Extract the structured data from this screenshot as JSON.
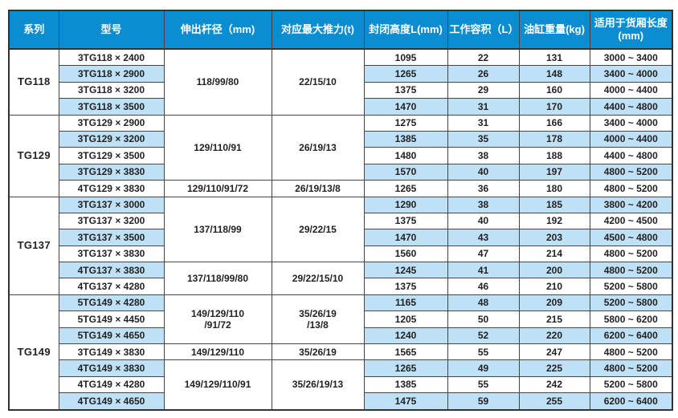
{
  "colors": {
    "header_bg": "#0b8dd2",
    "header_text": "#ffffff",
    "stripe_bg": "#bfe1f5",
    "row_bg": "#ffffff",
    "border": "#454548",
    "text": "#231f20"
  },
  "table": {
    "columns": [
      "系列",
      "型号",
      "伸出杆径（mm)",
      "对应最大推力(t)",
      "封闭高度L(mm)",
      "工作容积（L）",
      "油缸重量(kg)",
      "适用于货厢长度\n(mm)"
    ],
    "groups": [
      {
        "series": "TG118",
        "spans": [
          {
            "rows": 4,
            "rod": "118/99/80",
            "thrust": "22/15/10"
          }
        ],
        "rows": [
          {
            "model": "3TG118 × 2400",
            "closed_height": "1095",
            "volume": "22",
            "weight": "131",
            "box_length": "3000 ~ 3400"
          },
          {
            "model": "3TG118 × 2900",
            "closed_height": "1265",
            "volume": "26",
            "weight": "148",
            "box_length": "3400 ~ 4000"
          },
          {
            "model": "3TG118 × 3200",
            "closed_height": "1375",
            "volume": "29",
            "weight": "160",
            "box_length": "4000 ~ 4400"
          },
          {
            "model": "3TG118 × 3500",
            "closed_height": "1470",
            "volume": "31",
            "weight": "170",
            "box_length": "4400 ~ 4800"
          }
        ]
      },
      {
        "series": "TG129",
        "spans": [
          {
            "rows": 4,
            "rod": "129/110/91",
            "thrust": "26/19/13"
          },
          {
            "rows": 1,
            "rod": "129/110/91/72",
            "thrust": "26/19/13/8"
          }
        ],
        "rows": [
          {
            "model": "3TG129 × 2900",
            "closed_height": "1275",
            "volume": "31",
            "weight": "166",
            "box_length": "3400 ~ 4000"
          },
          {
            "model": "3TG129 × 3200",
            "closed_height": "1385",
            "volume": "35",
            "weight": "178",
            "box_length": "4000 ~ 4400"
          },
          {
            "model": "3TG129 × 3500",
            "closed_height": "1480",
            "volume": "38",
            "weight": "188",
            "box_length": "4400 ~ 4800"
          },
          {
            "model": "3TG129 × 3830",
            "closed_height": "1570",
            "volume": "40",
            "weight": "197",
            "box_length": "4800 ~ 5200"
          },
          {
            "model": "4TG129 × 3830",
            "closed_height": "1265",
            "volume": "36",
            "weight": "180",
            "box_length": "4800 ~ 5200"
          }
        ]
      },
      {
        "series": "TG137",
        "spans": [
          {
            "rows": 4,
            "rod": "137/118/99",
            "thrust": "29/22/15"
          },
          {
            "rows": 2,
            "rod": "137/118/99/80",
            "thrust": "29/22/15/10"
          }
        ],
        "rows": [
          {
            "model": "3TG137 × 3000",
            "closed_height": "1290",
            "volume": "38",
            "weight": "185",
            "box_length": "3800 ~ 4200"
          },
          {
            "model": "3TG137 × 3200",
            "closed_height": "1375",
            "volume": "40",
            "weight": "192",
            "box_length": "4200 ~ 4500"
          },
          {
            "model": "3TG137 × 3500",
            "closed_height": "1470",
            "volume": "43",
            "weight": "203",
            "box_length": "4500 ~ 4800"
          },
          {
            "model": "3TG137 × 3830",
            "closed_height": "1560",
            "volume": "47",
            "weight": "214",
            "box_length": "4800 ~ 5200"
          },
          {
            "model": "4TG137 × 3830",
            "closed_height": "1245",
            "volume": "41",
            "weight": "200",
            "box_length": "4800 ~ 5200"
          },
          {
            "model": "4TG137 × 4280",
            "closed_height": "1375",
            "volume": "46",
            "weight": "210",
            "box_length": "5200 ~ 5800"
          }
        ]
      },
      {
        "series": "TG149",
        "spans": [
          {
            "rows": 3,
            "rod": "149/129/110\n/91/72",
            "thrust": "35/26/19\n/13/8"
          },
          {
            "rows": 1,
            "rod": "149/129/110",
            "thrust": "35/26/19"
          },
          {
            "rows": 3,
            "rod": "149/129/110/91",
            "thrust": "35/26/19/13"
          }
        ],
        "rows": [
          {
            "model": "5TG149 × 4280",
            "closed_height": "1165",
            "volume": "48",
            "weight": "209",
            "box_length": "5200 ~ 5800"
          },
          {
            "model": "5TG149 × 4450",
            "closed_height": "1205",
            "volume": "50",
            "weight": "215",
            "box_length": "5800 ~ 6200"
          },
          {
            "model": "5TG149 × 4650",
            "closed_height": "1240",
            "volume": "52",
            "weight": "220",
            "box_length": "6200 ~ 6400"
          },
          {
            "model": "3TG149 × 3830",
            "closed_height": "1565",
            "volume": "55",
            "weight": "247",
            "box_length": "4800 ~ 5200"
          },
          {
            "model": "4TG149 × 3830",
            "closed_height": "1265",
            "volume": "49",
            "weight": "225",
            "box_length": "4800 ~ 5200"
          },
          {
            "model": "4TG149 × 4280",
            "closed_height": "1385",
            "volume": "55",
            "weight": "242",
            "box_length": "5200 ~ 5800"
          },
          {
            "model": "4TG149 × 4650",
            "closed_height": "1475",
            "volume": "59",
            "weight": "255",
            "box_length": "6200 ~ 6400"
          }
        ]
      }
    ]
  }
}
